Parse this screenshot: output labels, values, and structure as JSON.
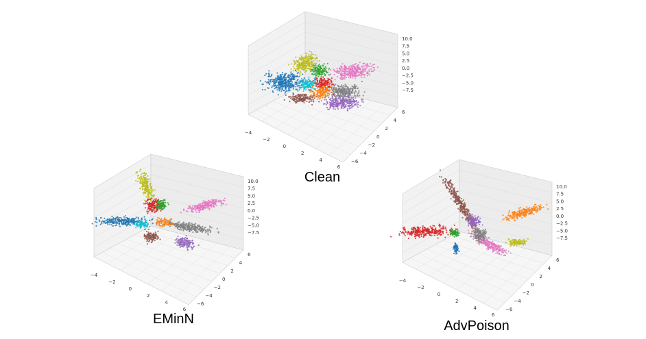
{
  "panels": [
    {
      "label": "Clean",
      "z_ticks": [
        "10.0",
        "7.5",
        "5.0",
        "2.5",
        "0.0",
        "−2.5",
        "−5.0",
        "−7.5"
      ],
      "x_ticks": [
        "−4",
        "−2",
        "0",
        "2",
        "4",
        "6"
      ],
      "y_ticks": [
        "−6",
        "−4",
        "−2",
        "0",
        "2",
        "4",
        "6"
      ]
    },
    {
      "label": "EMinN",
      "z_ticks": [
        "10.0",
        "7.5",
        "5.0",
        "2.5",
        "0.0",
        "−2.5",
        "−5.0",
        "−7.5"
      ],
      "x_ticks": [
        "−4",
        "−2",
        "0",
        "2",
        "4",
        "6"
      ],
      "y_ticks": [
        "−6",
        "−4",
        "−2",
        "0",
        "2",
        "4",
        "6"
      ]
    },
    {
      "label": "AdvPoison",
      "z_ticks": [
        "10.0",
        "7.5",
        "5.0",
        "2.5",
        "0.0",
        "−2.5",
        "−5.0",
        "−7.5"
      ],
      "x_ticks": [
        "−4",
        "−2",
        "0",
        "2",
        "4",
        "6"
      ],
      "y_ticks": [
        "−6",
        "−4",
        "−2",
        "0",
        "2",
        "4",
        "6"
      ]
    }
  ]
}
